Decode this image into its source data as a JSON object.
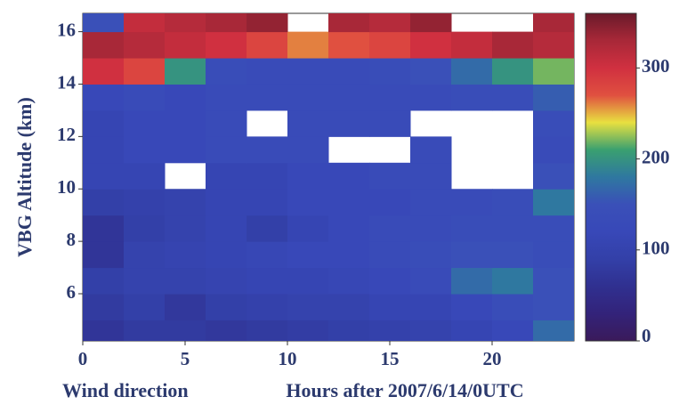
{
  "chart_data": {
    "type": "heatmap",
    "xlabel": "Hours after 2007/6/14/0UTC",
    "ylabel": "VBG Altitude (km)",
    "x": [
      1,
      3,
      5,
      7,
      9,
      11,
      13,
      15,
      17,
      19,
      21,
      23
    ],
    "y": [
      4.5,
      5.5,
      6.5,
      7.5,
      8.5,
      9.5,
      10.5,
      11.5,
      12.5,
      13.5,
      14.5,
      15.5,
      16.5
    ],
    "z": [
      [
        70,
        80,
        80,
        75,
        80,
        85,
        90,
        95,
        100,
        110,
        120,
        170
      ],
      [
        80,
        90,
        75,
        90,
        95,
        100,
        100,
        110,
        110,
        120,
        140,
        150
      ],
      [
        90,
        100,
        100,
        105,
        110,
        110,
        115,
        120,
        130,
        170,
        180,
        150
      ],
      [
        70,
        100,
        105,
        110,
        115,
        120,
        120,
        130,
        140,
        150,
        150,
        140
      ],
      [
        70,
        90,
        100,
        110,
        90,
        110,
        120,
        130,
        130,
        140,
        140,
        140
      ],
      [
        90,
        95,
        100,
        110,
        110,
        120,
        120,
        120,
        130,
        130,
        140,
        180
      ],
      [
        110,
        110,
        null,
        110,
        110,
        120,
        120,
        130,
        130,
        null,
        null,
        150
      ],
      [
        110,
        120,
        120,
        130,
        130,
        130,
        null,
        null,
        130,
        null,
        null,
        130
      ],
      [
        110,
        120,
        120,
        130,
        null,
        130,
        130,
        130,
        null,
        null,
        null,
        140
      ],
      [
        120,
        130,
        120,
        130,
        130,
        130,
        130,
        130,
        130,
        140,
        140,
        160
      ],
      [
        300,
        280,
        200,
        140,
        130,
        130,
        130,
        140,
        150,
        170,
        200,
        220
      ],
      [
        330,
        320,
        310,
        300,
        280,
        260,
        270,
        280,
        300,
        310,
        330,
        320
      ],
      [
        150,
        310,
        320,
        330,
        340,
        null,
        330,
        320,
        340,
        null,
        null,
        330
      ]
    ],
    "xlim": [
      0,
      24
    ],
    "ylim": [
      4.2,
      16.7
    ],
    "xticks": [
      0,
      5,
      10,
      15,
      20
    ],
    "yticks": [
      6,
      8,
      10,
      12,
      14,
      16
    ],
    "colorbar": {
      "label": "Wind direction",
      "lim": [
        0,
        360
      ],
      "ticks": [
        0,
        100,
        200,
        300
      ],
      "colors": [
        "#3a1a5a",
        "#33237a",
        "#303090",
        "#3340a8",
        "#3848b8",
        "#3a50b8",
        "#2f78a0",
        "#3aa070",
        "#e8e040",
        "#e05040",
        "#d03040",
        "#a82838",
        "#6a1a2a"
      ]
    }
  }
}
